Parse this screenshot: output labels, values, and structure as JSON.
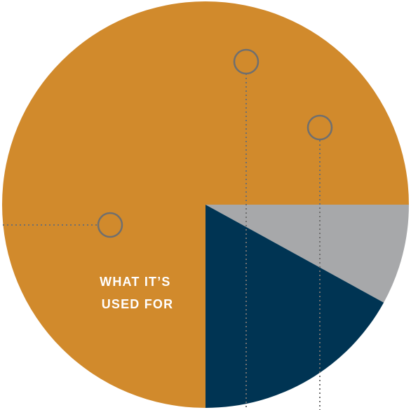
{
  "chart_data": {
    "type": "pie",
    "title": "",
    "slices": [
      {
        "label": "",
        "value": 75,
        "color": "#D18A2C"
      },
      {
        "label": "",
        "value": 8,
        "color": "#A7A8AA"
      },
      {
        "label": "",
        "value": 17,
        "color": "#003453"
      }
    ],
    "center_label_lines": [
      "WHAT IT’S",
      "USED FOR"
    ],
    "center_label_color": "#FFFFFF",
    "callout_color": "#6F6F6F",
    "background": "#FFFFFF"
  }
}
